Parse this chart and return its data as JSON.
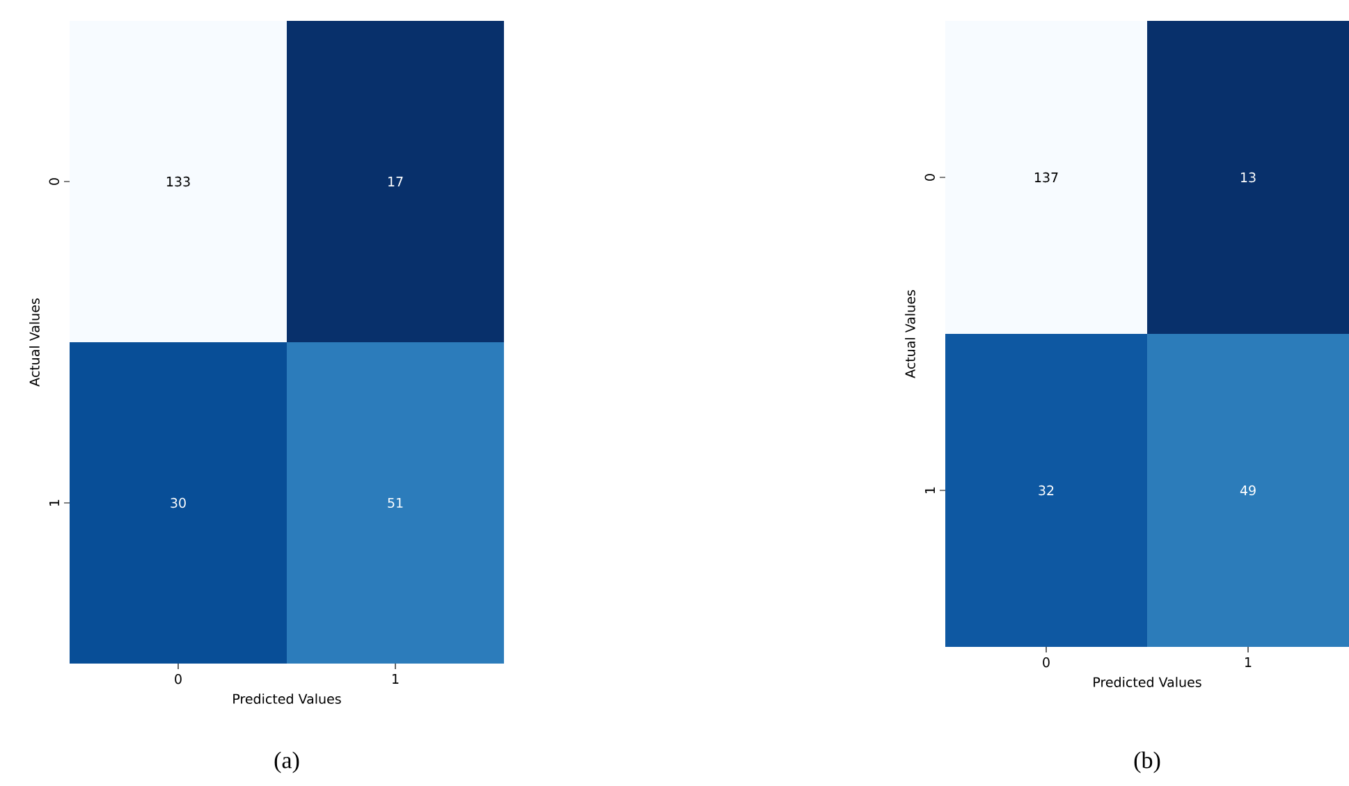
{
  "chart_data": [
    {
      "type": "heatmap",
      "title": "(a)",
      "xlabel": "Predicted Values",
      "ylabel": "Actual Values",
      "categories": [
        "0",
        "1"
      ],
      "y_categories": [
        "0",
        "1"
      ],
      "cells": [
        [
          133,
          17
        ],
        [
          30,
          51
        ]
      ],
      "data_labels": true
    },
    {
      "type": "heatmap",
      "title": "(b)",
      "xlabel": "Predicted Values",
      "ylabel": "Actual Values",
      "categories": [
        "0",
        "1"
      ],
      "y_categories": [
        "0",
        "1"
      ],
      "cells": [
        [
          137,
          13
        ],
        [
          32,
          49
        ]
      ],
      "data_labels": true
    }
  ]
}
